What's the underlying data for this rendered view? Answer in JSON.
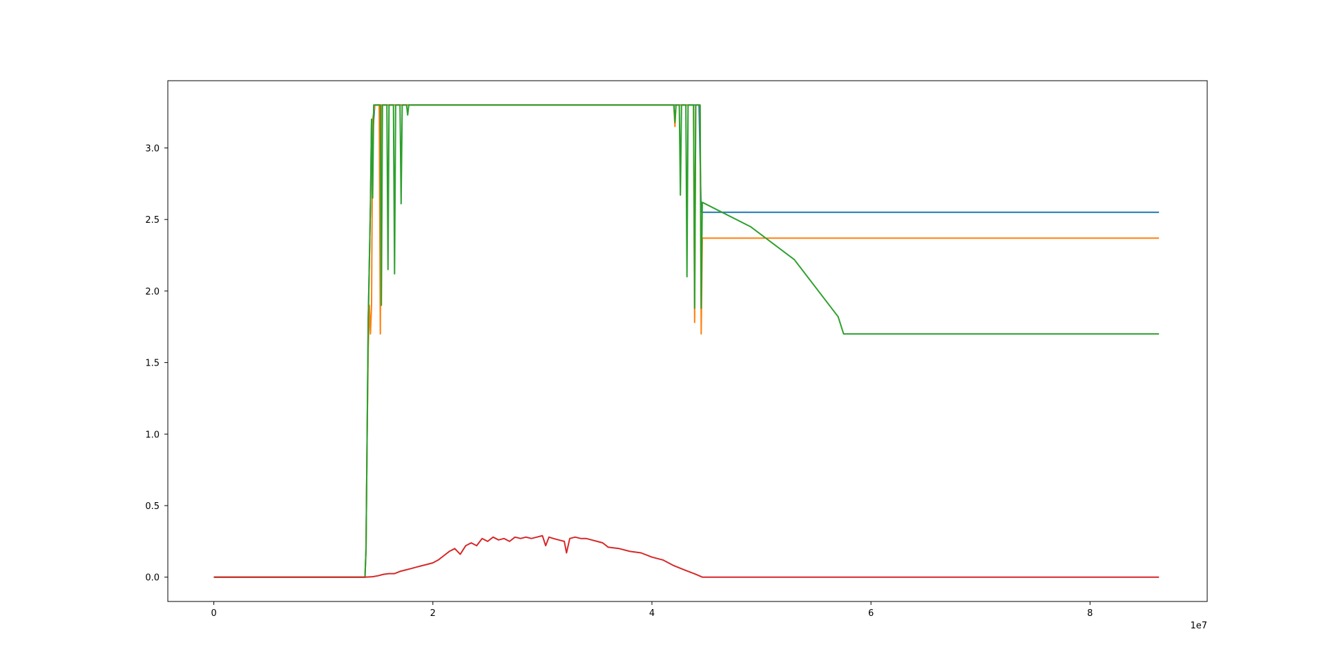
{
  "chart_data": {
    "type": "line",
    "title": "",
    "xlabel": "",
    "ylabel": "",
    "x_offset_label": "1e7",
    "xlim": [
      -0.42,
      9.07
    ],
    "ylim": [
      -0.17,
      3.47
    ],
    "grid": false,
    "legend": "none",
    "x_ticks": [
      {
        "value": 0,
        "label": "0"
      },
      {
        "value": 2,
        "label": "2"
      },
      {
        "value": 4,
        "label": "4"
      },
      {
        "value": 6,
        "label": "6"
      },
      {
        "value": 8,
        "label": "8"
      }
    ],
    "y_ticks": [
      {
        "value": 0.0,
        "label": "0.0"
      },
      {
        "value": 0.5,
        "label": "0.5"
      },
      {
        "value": 1.0,
        "label": "1.0"
      },
      {
        "value": 1.5,
        "label": "1.5"
      },
      {
        "value": 2.0,
        "label": "2.0"
      },
      {
        "value": 2.5,
        "label": "2.5"
      },
      {
        "value": 3.0,
        "label": "3.0"
      }
    ],
    "series": [
      {
        "color": "#1f77b4",
        "points": [
          [
            0,
            0
          ],
          [
            1.38,
            0
          ],
          [
            1.39,
            0.2
          ],
          [
            1.4,
            1.0
          ],
          [
            1.41,
            1.8
          ],
          [
            1.43,
            2.6
          ],
          [
            1.44,
            3.2
          ],
          [
            1.45,
            3.1
          ],
          [
            1.47,
            3.3
          ],
          [
            4.43,
            3.3
          ],
          [
            4.45,
            2.55
          ],
          [
            4.47,
            2.55
          ],
          [
            8.63,
            2.55
          ]
        ]
      },
      {
        "color": "#ff7f0e",
        "points": [
          [
            0,
            0
          ],
          [
            1.38,
            0
          ],
          [
            1.39,
            0.2
          ],
          [
            1.4,
            1.0
          ],
          [
            1.41,
            1.6
          ],
          [
            1.42,
            1.9
          ],
          [
            1.43,
            1.7
          ],
          [
            1.44,
            1.9
          ],
          [
            1.45,
            3.2
          ],
          [
            1.47,
            3.3
          ],
          [
            1.51,
            3.3
          ],
          [
            1.52,
            1.7
          ],
          [
            1.53,
            3.3
          ],
          [
            4.2,
            3.3
          ],
          [
            4.21,
            3.15
          ],
          [
            4.22,
            3.3
          ],
          [
            4.38,
            3.3
          ],
          [
            4.39,
            1.78
          ],
          [
            4.4,
            3.3
          ],
          [
            4.44,
            3.3
          ],
          [
            4.45,
            1.7
          ],
          [
            4.46,
            2.37
          ],
          [
            8.63,
            2.37
          ]
        ]
      },
      {
        "color": "#2ca02c",
        "points": [
          [
            0,
            0
          ],
          [
            1.38,
            0
          ],
          [
            1.39,
            0.2
          ],
          [
            1.4,
            1.0
          ],
          [
            1.41,
            1.8
          ],
          [
            1.43,
            2.6
          ],
          [
            1.44,
            3.2
          ],
          [
            1.45,
            2.65
          ],
          [
            1.46,
            3.3
          ],
          [
            1.52,
            3.3
          ],
          [
            1.53,
            1.9
          ],
          [
            1.54,
            3.3
          ],
          [
            1.58,
            3.3
          ],
          [
            1.59,
            2.15
          ],
          [
            1.6,
            3.3
          ],
          [
            1.64,
            3.3
          ],
          [
            1.65,
            2.12
          ],
          [
            1.66,
            3.3
          ],
          [
            1.7,
            3.3
          ],
          [
            1.71,
            2.61
          ],
          [
            1.72,
            3.3
          ],
          [
            1.76,
            3.3
          ],
          [
            1.77,
            3.23
          ],
          [
            1.78,
            3.3
          ],
          [
            4.2,
            3.3
          ],
          [
            4.21,
            3.18
          ],
          [
            4.22,
            3.3
          ],
          [
            4.25,
            3.3
          ],
          [
            4.26,
            2.67
          ],
          [
            4.27,
            3.3
          ],
          [
            4.31,
            3.3
          ],
          [
            4.32,
            2.1
          ],
          [
            4.33,
            3.3
          ],
          [
            4.38,
            3.3
          ],
          [
            4.39,
            1.88
          ],
          [
            4.4,
            3.3
          ],
          [
            4.44,
            3.3
          ],
          [
            4.45,
            1.88
          ],
          [
            4.46,
            2.62
          ],
          [
            4.9,
            2.45
          ],
          [
            5.3,
            2.22
          ],
          [
            5.7,
            1.82
          ],
          [
            5.75,
            1.7
          ],
          [
            8.63,
            1.7
          ]
        ]
      },
      {
        "color": "#d62728",
        "points": [
          [
            0,
            0
          ],
          [
            1.38,
            0
          ],
          [
            1.45,
            0.003
          ],
          [
            1.5,
            0.01
          ],
          [
            1.55,
            0.02
          ],
          [
            1.6,
            0.025
          ],
          [
            1.65,
            0.025
          ],
          [
            1.7,
            0.04
          ],
          [
            1.75,
            0.05
          ],
          [
            1.8,
            0.06
          ],
          [
            1.85,
            0.07
          ],
          [
            1.9,
            0.08
          ],
          [
            1.95,
            0.09
          ],
          [
            2.0,
            0.1
          ],
          [
            2.05,
            0.12
          ],
          [
            2.1,
            0.15
          ],
          [
            2.15,
            0.18
          ],
          [
            2.2,
            0.2
          ],
          [
            2.25,
            0.16
          ],
          [
            2.3,
            0.22
          ],
          [
            2.35,
            0.24
          ],
          [
            2.4,
            0.22
          ],
          [
            2.45,
            0.27
          ],
          [
            2.5,
            0.25
          ],
          [
            2.55,
            0.28
          ],
          [
            2.6,
            0.26
          ],
          [
            2.65,
            0.27
          ],
          [
            2.7,
            0.25
          ],
          [
            2.75,
            0.28
          ],
          [
            2.8,
            0.27
          ],
          [
            2.85,
            0.28
          ],
          [
            2.9,
            0.27
          ],
          [
            2.95,
            0.28
          ],
          [
            3.0,
            0.29
          ],
          [
            3.03,
            0.22
          ],
          [
            3.06,
            0.28
          ],
          [
            3.1,
            0.27
          ],
          [
            3.15,
            0.26
          ],
          [
            3.2,
            0.25
          ],
          [
            3.22,
            0.17
          ],
          [
            3.25,
            0.27
          ],
          [
            3.3,
            0.28
          ],
          [
            3.35,
            0.27
          ],
          [
            3.4,
            0.27
          ],
          [
            3.45,
            0.26
          ],
          [
            3.5,
            0.25
          ],
          [
            3.55,
            0.24
          ],
          [
            3.6,
            0.21
          ],
          [
            3.7,
            0.2
          ],
          [
            3.8,
            0.18
          ],
          [
            3.9,
            0.17
          ],
          [
            4.0,
            0.14
          ],
          [
            4.1,
            0.12
          ],
          [
            4.2,
            0.08
          ],
          [
            4.3,
            0.05
          ],
          [
            4.4,
            0.02
          ],
          [
            4.46,
            0.0
          ],
          [
            8.63,
            0.0
          ]
        ]
      }
    ]
  }
}
